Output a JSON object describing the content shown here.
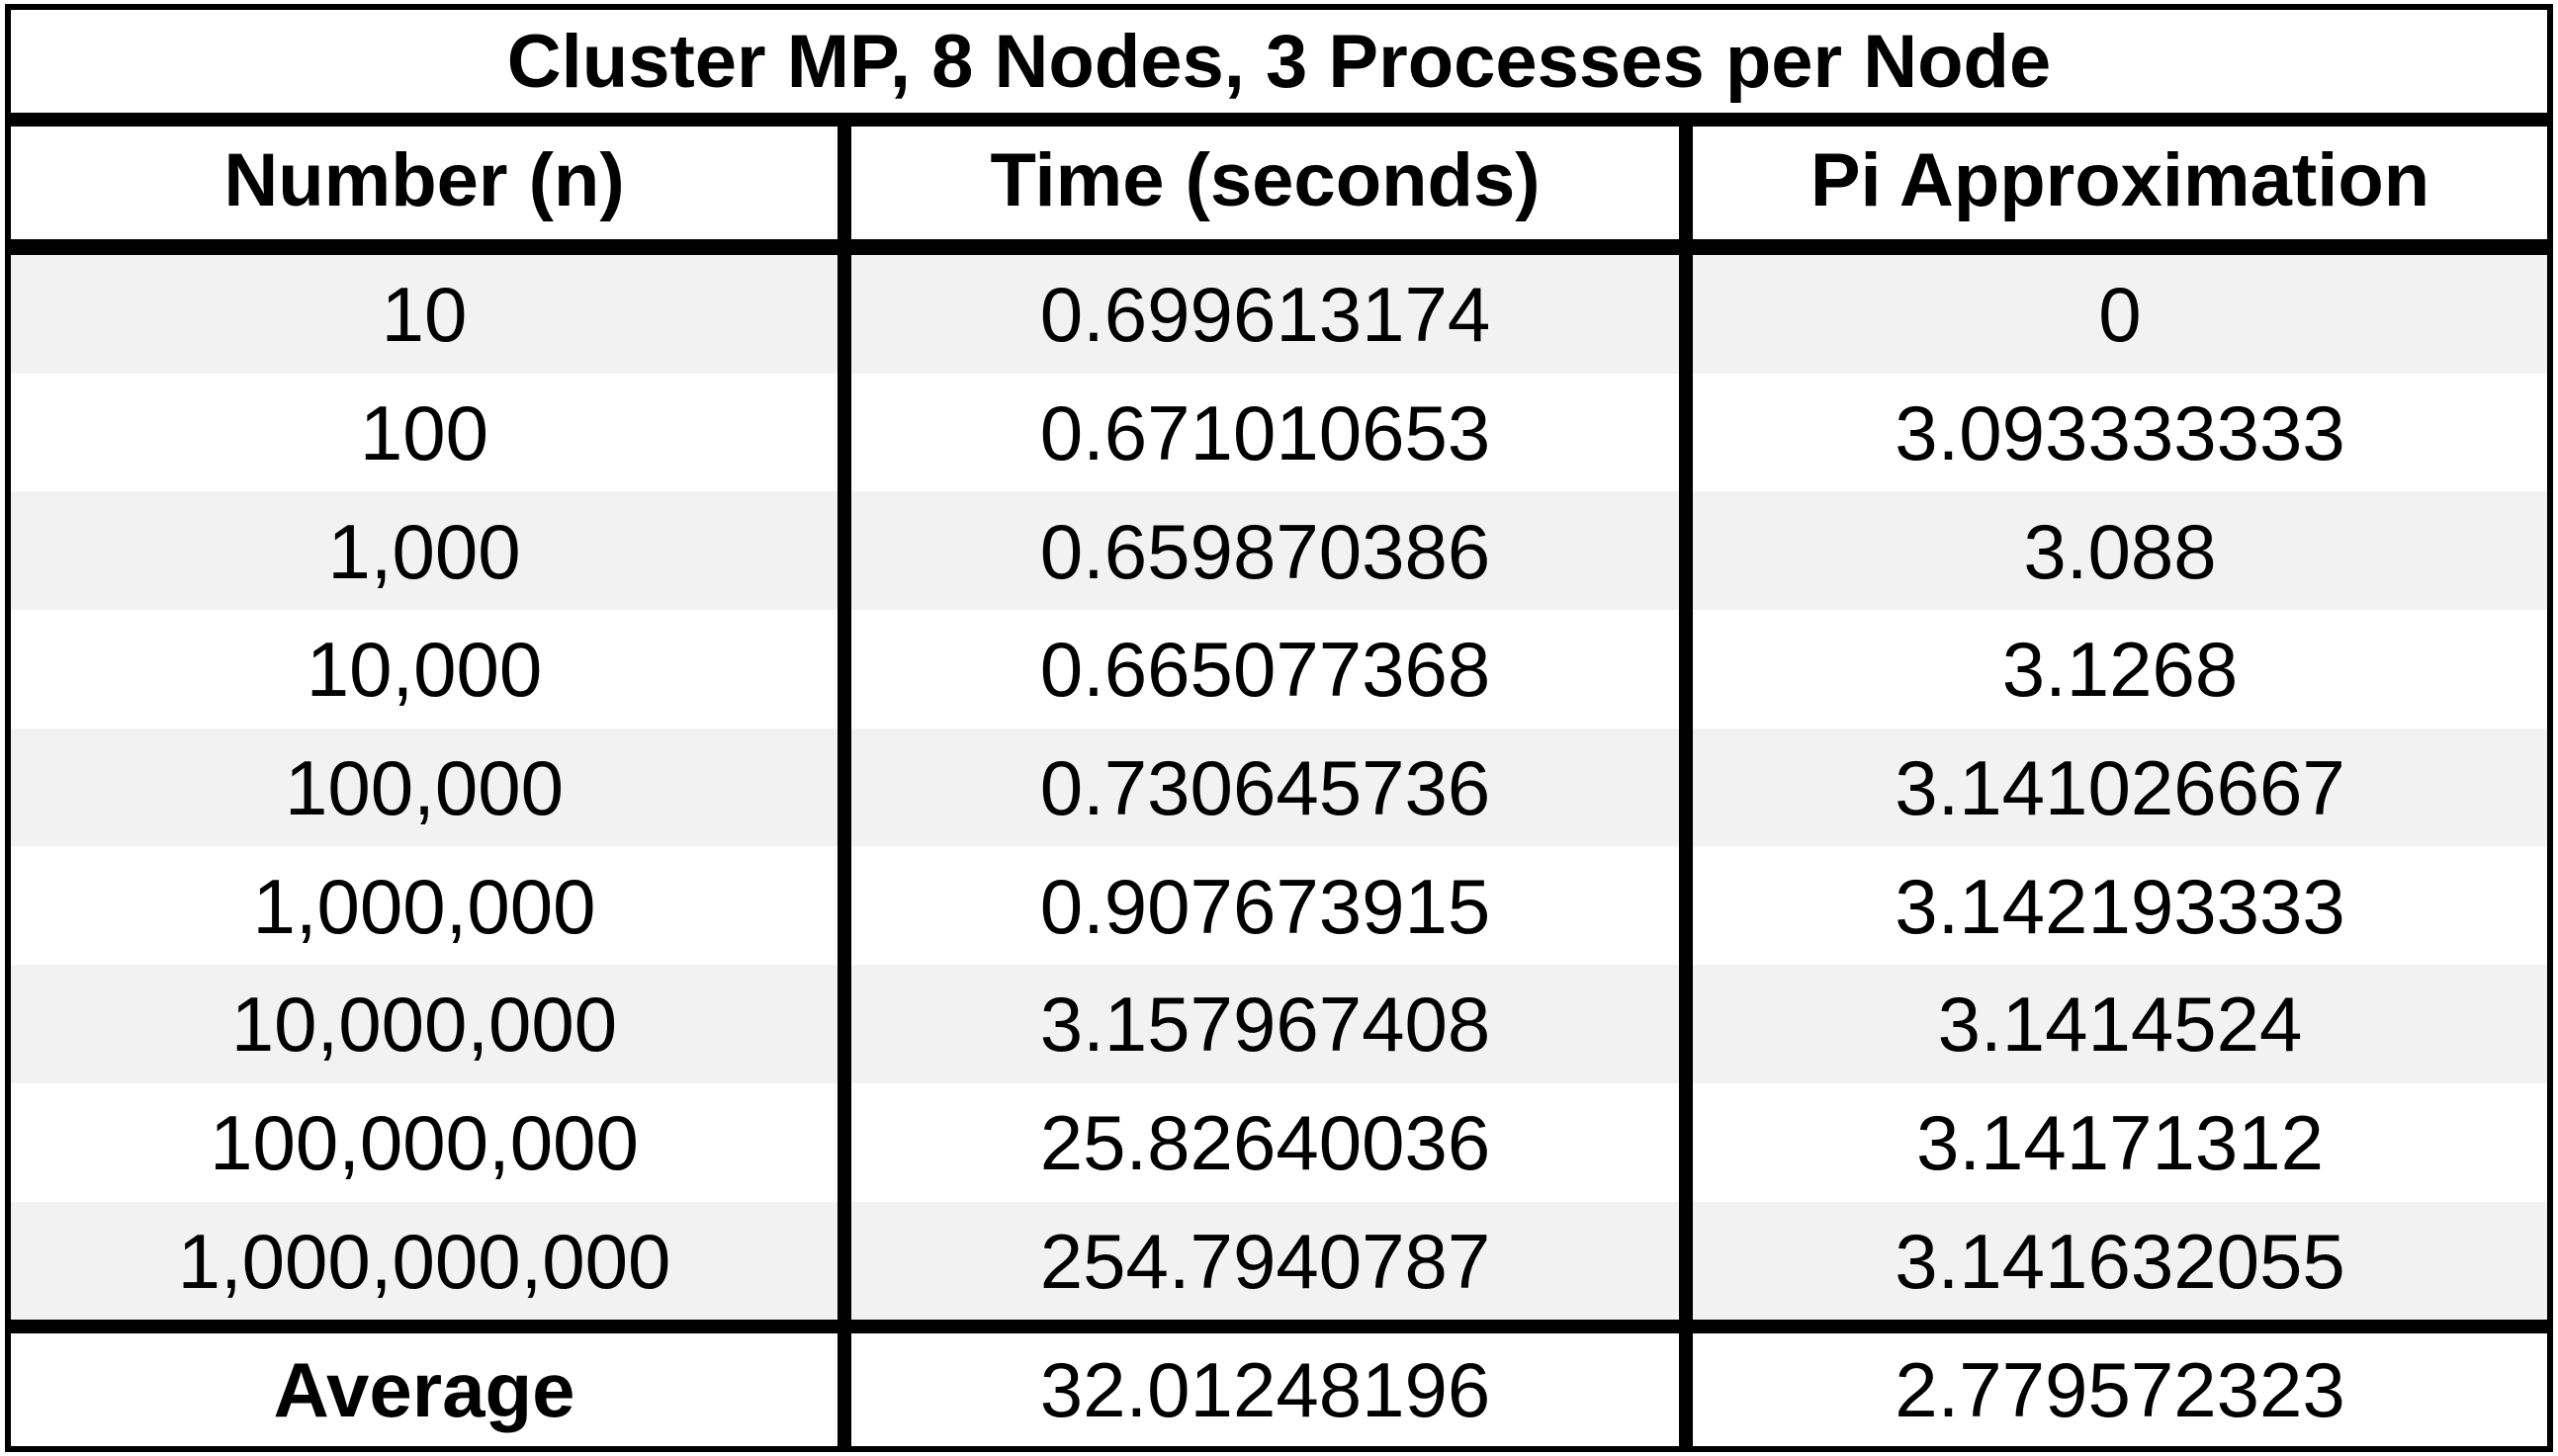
{
  "table": {
    "title": "Cluster MP, 8 Nodes, 3 Processes per Node",
    "headers": [
      "Number (n)",
      "Time (seconds)",
      "Pi Approximation"
    ],
    "rows": [
      {
        "n": "10",
        "time": "0.699613174",
        "pi": "0"
      },
      {
        "n": "100",
        "time": "0.671010653",
        "pi": "3.093333333"
      },
      {
        "n": "1,000",
        "time": "0.659870386",
        "pi": "3.088"
      },
      {
        "n": "10,000",
        "time": "0.665077368",
        "pi": "3.1268"
      },
      {
        "n": "100,000",
        "time": "0.730645736",
        "pi": "3.141026667"
      },
      {
        "n": "1,000,000",
        "time": "0.907673915",
        "pi": "3.142193333"
      },
      {
        "n": "10,000,000",
        "time": "3.157967408",
        "pi": "3.1414524"
      },
      {
        "n": "100,000,000",
        "time": "25.82640036",
        "pi": "3.14171312"
      },
      {
        "n": "1,000,000,000",
        "time": "254.7940787",
        "pi": "3.141632055"
      }
    ],
    "average": {
      "label": "Average",
      "time": "32.01248196",
      "pi": "2.779572323"
    }
  },
  "colors": {
    "border": "#000000",
    "shaded_row": "#f2f2f2",
    "background": "#ffffff"
  }
}
